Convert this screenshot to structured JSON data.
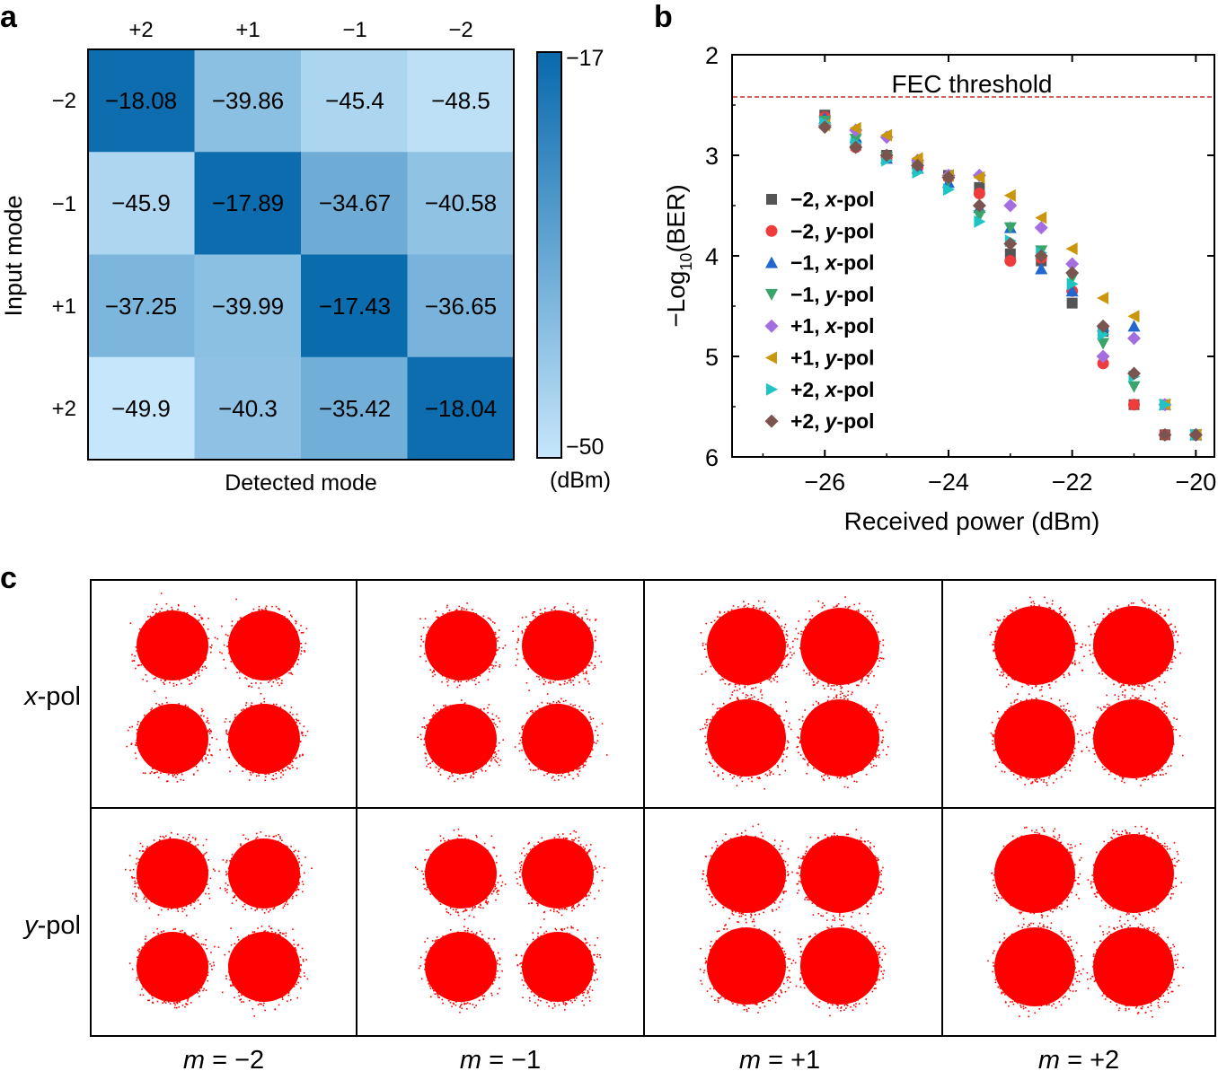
{
  "panel_labels": {
    "a": "a",
    "b": "b",
    "c": "c"
  },
  "chart_data": [
    {
      "id": "a",
      "type": "heatmap",
      "xlabel": "Detected mode",
      "ylabel": "Input mode",
      "col_labels": [
        "+2",
        "+1",
        "−1",
        "−2"
      ],
      "row_labels": [
        "−2",
        "−1",
        "+1",
        "+2"
      ],
      "values": [
        [
          "−18.08",
          "−39.86",
          "−45.4",
          "−48.5"
        ],
        [
          "−45.9",
          "−17.89",
          "−34.67",
          "−40.58"
        ],
        [
          "−37.25",
          "−39.99",
          "−17.43",
          "−36.65"
        ],
        [
          "−49.9",
          "−40.3",
          "−35.42",
          "−18.04"
        ]
      ],
      "colorbar": {
        "max_label": "−17",
        "min_label": "−50",
        "unit": "(dBm)",
        "max": -17,
        "min": -50,
        "color_max": "#0869ac",
        "color_min": "#c6e6fb"
      }
    },
    {
      "id": "b",
      "type": "scatter",
      "xlabel": "Received power (dBm)",
      "ylabel_prefix": "−Log",
      "ylabel_sub": "10",
      "ylabel_suffix": "(BER)",
      "xlim": [
        -27.5,
        -19.7
      ],
      "ylim": [
        2,
        6
      ],
      "y_inverted": true,
      "xticks": [
        -26,
        -24,
        -22,
        -20
      ],
      "xtick_labels": [
        "−26",
        "−24",
        "−22",
        "−20"
      ],
      "yticks": [
        2,
        3,
        4,
        5,
        6
      ],
      "ytick_labels": [
        "2",
        "3",
        "4",
        "5",
        "6"
      ],
      "threshold": {
        "label": "FEC threshold",
        "y": 2.42,
        "color": "#d42a2a"
      },
      "legend_position": "left",
      "series": [
        {
          "mode": "−2,",
          "pol": "x-pol",
          "marker": "square",
          "color": "#555555",
          "x": [
            -26,
            -25.5,
            -25,
            -24.5,
            -24,
            -23.5,
            -23,
            -22.5,
            -22,
            -21.5,
            -21,
            -20.5,
            -20
          ],
          "y": [
            2.6,
            2.9,
            3.0,
            3.1,
            3.2,
            3.32,
            3.98,
            4.05,
            4.47,
            4.75,
            5.48,
            5.78,
            5.78
          ]
        },
        {
          "mode": "−2,",
          "pol": "y-pol",
          "marker": "circle",
          "color": "#ee3b3b",
          "x": [
            -26,
            -25.5,
            -25,
            -24.5,
            -24,
            -23.5,
            -23,
            -22.5,
            -22,
            -21.5,
            -21,
            -20.5,
            -20
          ],
          "y": [
            2.62,
            2.92,
            3.02,
            3.12,
            3.22,
            3.38,
            4.05,
            4.02,
            4.35,
            5.07,
            5.48,
            5.78,
            5.78
          ]
        },
        {
          "mode": "−1,",
          "pol": "x-pol",
          "marker": "triangle-up",
          "color": "#2068d0",
          "x": [
            -26,
            -25.5,
            -25,
            -24.5,
            -24,
            -23.5,
            -23,
            -22.5,
            -22,
            -21.5,
            -21,
            -20.5,
            -20
          ],
          "y": [
            2.63,
            2.82,
            3.03,
            3.13,
            3.27,
            3.52,
            3.72,
            4.13,
            4.35,
            4.7,
            4.7,
            5.48,
            5.78
          ]
        },
        {
          "mode": "−1,",
          "pol": "y-pol",
          "marker": "triangle-down",
          "color": "#3aa56a",
          "x": [
            -26,
            -25.5,
            -25,
            -24.5,
            -24,
            -23.5,
            -23,
            -22.5,
            -22,
            -21.5,
            -21,
            -20.5,
            -20
          ],
          "y": [
            2.66,
            2.84,
            3.02,
            3.12,
            3.25,
            3.6,
            3.72,
            3.95,
            4.22,
            4.87,
            5.3,
            5.48,
            5.78
          ]
        },
        {
          "mode": "+1,",
          "pol": "x-pol",
          "marker": "diamond",
          "color": "#a56ee0",
          "x": [
            -26,
            -25.5,
            -25,
            -24.5,
            -24,
            -23.5,
            -23,
            -22.5,
            -22,
            -21.5,
            -21,
            -20.5,
            -20
          ],
          "y": [
            2.7,
            2.75,
            2.82,
            3.05,
            3.2,
            3.2,
            3.5,
            3.72,
            4.08,
            5.0,
            4.82,
            5.48,
            5.78
          ]
        },
        {
          "mode": "+1,",
          "pol": "y-pol",
          "marker": "triangle-left",
          "color": "#c9960c",
          "x": [
            -26,
            -25.5,
            -25,
            -24.5,
            -24,
            -23.5,
            -23,
            -22.5,
            -22,
            -21.5,
            -21,
            -20.5,
            -20
          ],
          "y": [
            2.7,
            2.73,
            2.8,
            3.03,
            3.2,
            3.22,
            3.4,
            3.62,
            3.93,
            4.42,
            4.6,
            5.48,
            5.78
          ]
        },
        {
          "mode": "+2,",
          "pol": "x-pol",
          "marker": "triangle-right",
          "color": "#1fc4c4",
          "x": [
            -26,
            -25.5,
            -25,
            -24.5,
            -24,
            -23.5,
            -23,
            -22.5,
            -22,
            -21.5,
            -21,
            -20.5,
            -20
          ],
          "y": [
            2.68,
            2.88,
            3.05,
            3.17,
            3.34,
            3.66,
            3.85,
            3.97,
            4.28,
            4.78,
            5.2,
            5.48,
            5.78
          ]
        },
        {
          "mode": "+2,",
          "pol": "y-pol",
          "marker": "diamond",
          "color": "#7a5550",
          "x": [
            -26,
            -25.5,
            -25,
            -24.5,
            -24,
            -23.5,
            -23,
            -22.5,
            -22,
            -21.5,
            -21,
            -20.5,
            -20
          ],
          "y": [
            2.72,
            2.92,
            3.0,
            3.1,
            3.22,
            3.5,
            3.88,
            4.0,
            4.17,
            4.7,
            5.17,
            5.78,
            5.78
          ]
        }
      ]
    },
    {
      "id": "c",
      "type": "scatter",
      "description_row_labels": [
        "x-pol",
        "y-pol"
      ],
      "row_labels": [
        {
          "italic": "x",
          "rest": "-pol"
        },
        {
          "italic": "y",
          "rest": "-pol"
        }
      ],
      "col_labels": [
        {
          "italic": "m",
          "rest": " = −2"
        },
        {
          "italic": "m",
          "rest": " = −1"
        },
        {
          "italic": "m",
          "rest": " = +1"
        },
        {
          "italic": "m",
          "rest": " = +2"
        }
      ],
      "constellation": "QPSK",
      "symbols": [
        [
          -1,
          1
        ],
        [
          1,
          1
        ],
        [
          -1,
          -1
        ],
        [
          1,
          -1
        ]
      ],
      "point_color": "#ff0000"
    }
  ]
}
